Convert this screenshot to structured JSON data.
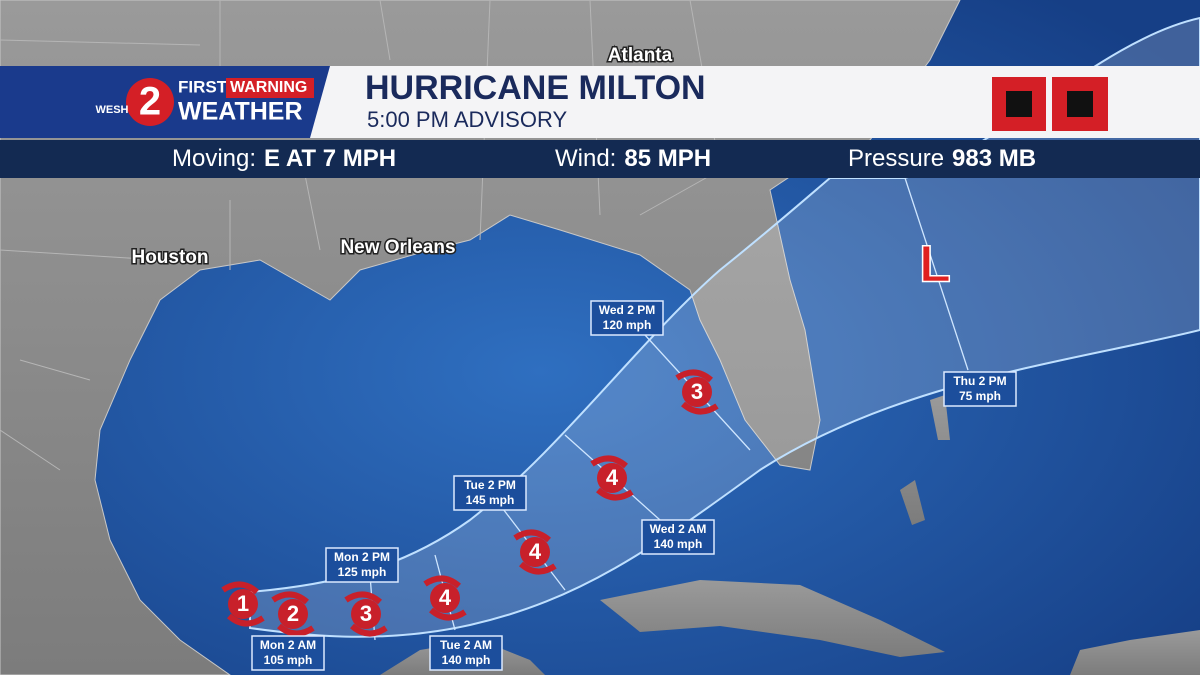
{
  "header": {
    "station": "WESH",
    "channel": "2",
    "brand_top": "FIRST",
    "brand_warning": "WARNING",
    "brand_bottom": "WEATHER",
    "title": "HURRICANE MILTON",
    "subtitle": "5:00 PM ADVISORY"
  },
  "stats": [
    {
      "label": "Moving:",
      "value": "E AT 7 MPH"
    },
    {
      "label": "Wind:",
      "value": "85 MPH"
    },
    {
      "label": "Pressure",
      "value": "983 MB"
    }
  ],
  "cities": [
    "Atlanta",
    "Houston",
    "New Orleans"
  ],
  "forecast_points": [
    {
      "time": "Mon 2 AM",
      "wind": "105 mph"
    },
    {
      "time": "Mon 2 PM",
      "wind": "125 mph"
    },
    {
      "time": "Tue 2 AM",
      "wind": "140 mph"
    },
    {
      "time": "Tue 2 PM",
      "wind": "145 mph"
    },
    {
      "time": "Wed 2 AM",
      "wind": "140 mph"
    },
    {
      "time": "Wed 2 PM",
      "wind": "120 mph"
    },
    {
      "time": "Thu 2 PM",
      "wind": "75 mph"
    }
  ],
  "storm_markers": [
    "1",
    "2",
    "3",
    "4",
    "4",
    "4",
    "3"
  ],
  "low_label": "L"
}
